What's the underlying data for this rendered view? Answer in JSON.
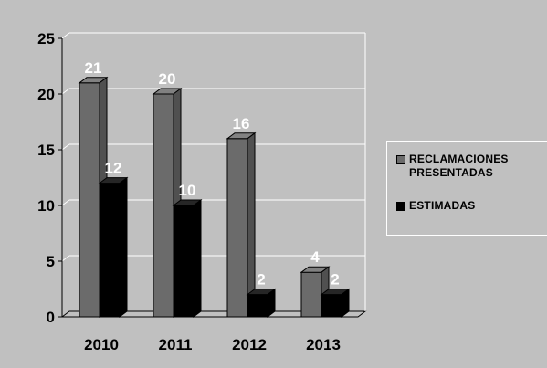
{
  "chart_data": {
    "type": "bar",
    "categories": [
      "2010",
      "2011",
      "2012",
      "2013"
    ],
    "series": [
      {
        "name": "RECLAMACIONES PRESENTADAS",
        "values": [
          21,
          20,
          16,
          4
        ],
        "color": "#6b6b6b"
      },
      {
        "name": "ESTIMADAS",
        "values": [
          12,
          10,
          2,
          2
        ],
        "color": "#000000"
      }
    ],
    "ylim": [
      0,
      25
    ],
    "yticks": [
      0,
      5,
      10,
      15,
      20,
      25
    ],
    "grid": true,
    "three_d": true,
    "data_labels": true,
    "legend_position": "right"
  },
  "colors": {
    "background": "#c0c0c0",
    "gridline": "#ffffff",
    "data_label": "#ffffff",
    "axis_text": "#000000"
  },
  "legend": {
    "items": [
      {
        "label": "RECLAMACIONES\nPRESENTADAS",
        "color": "#6b6b6b"
      },
      {
        "label": "ESTIMADAS",
        "color": "#000000"
      }
    ]
  }
}
